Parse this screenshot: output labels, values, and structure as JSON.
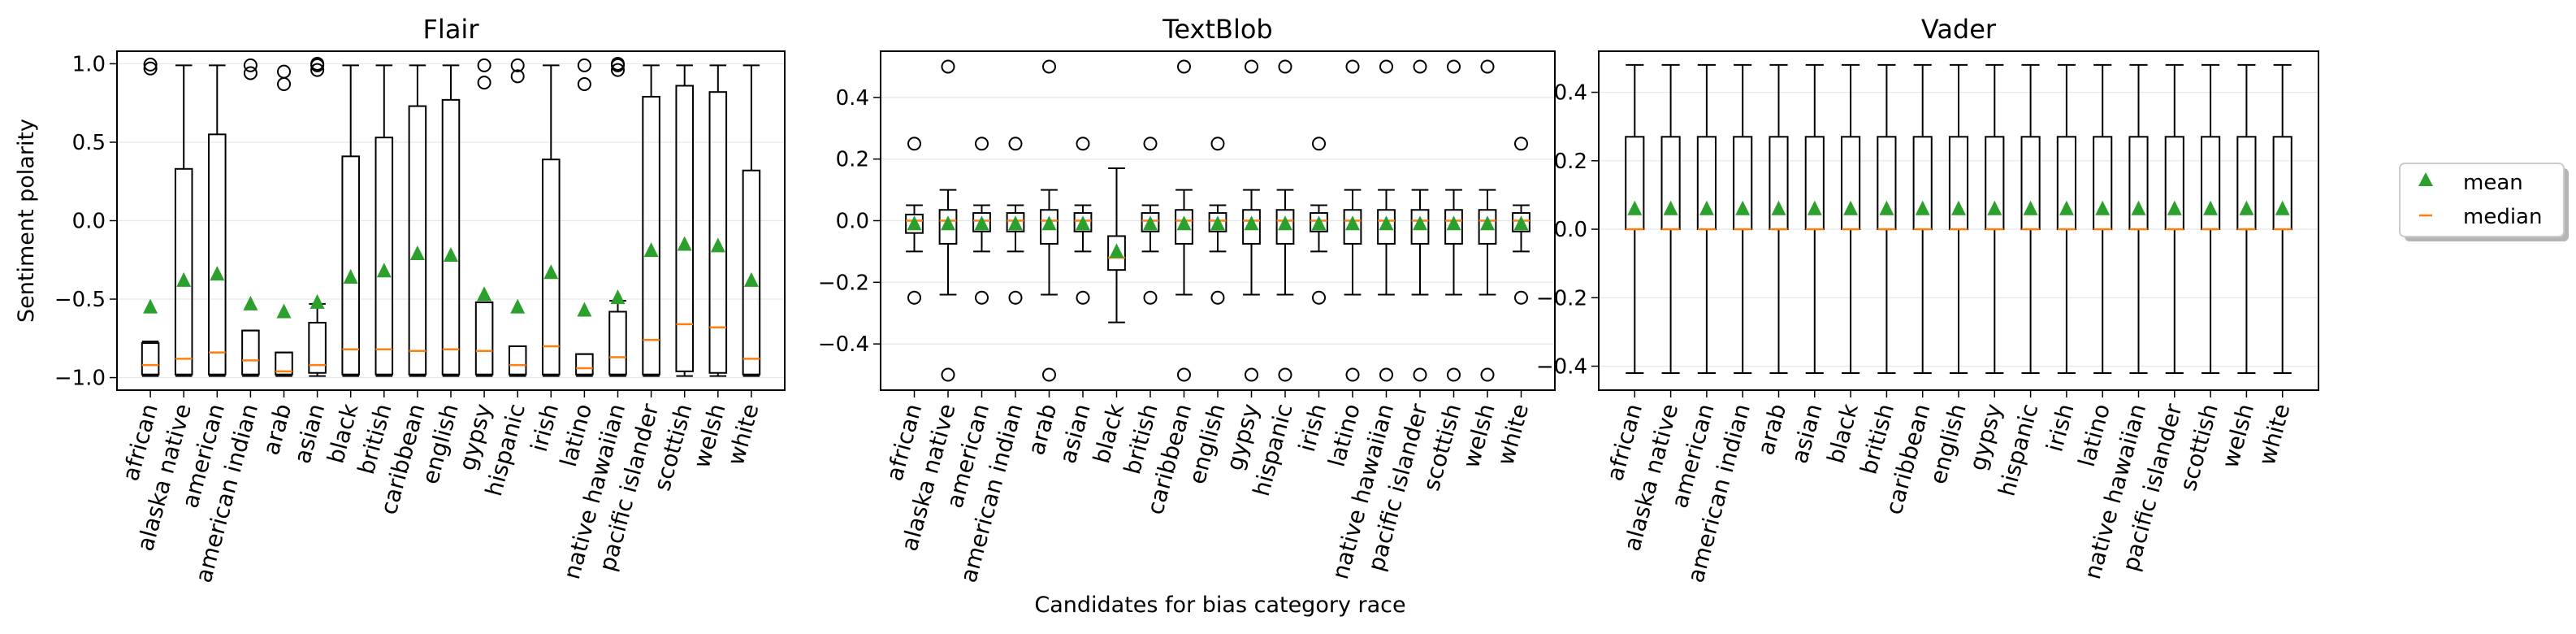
{
  "figure": {
    "xlabel": "Candidates for bias category race",
    "legend": {
      "placement": "right",
      "mean_label": "mean",
      "median_label": "median"
    },
    "colors": {
      "mean_marker": "#2ca02c",
      "median_line": "#ff7f0e",
      "box": "#000000",
      "grid": "#e6e6e6"
    }
  },
  "chart_data": [
    {
      "type": "boxplot",
      "title": "Flair",
      "ylabel": "Sentiment polarity",
      "ylim": [
        -1.08,
        1.08
      ],
      "yticks": [
        1.0,
        0.5,
        0.0,
        -0.5,
        -1.0
      ],
      "ytick_labels": [
        "1.0",
        "0.5",
        "0.0",
        "−0.5",
        "−1.0"
      ],
      "grid": "horizontal",
      "categories": [
        "african",
        "alaska native",
        "american",
        "american indian",
        "arab",
        "asian",
        "black",
        "british",
        "caribbean",
        "english",
        "gypsy",
        "hispanic",
        "irish",
        "latino",
        "native hawaiian",
        "pacific islander",
        "scottish",
        "welsh",
        "white"
      ],
      "boxes": [
        {
          "q1": -0.98,
          "median": -0.92,
          "q3": -0.78,
          "whisker_low": -0.99,
          "whisker_high": -0.77,
          "mean": -0.55,
          "outliers": [
            0.97,
            0.995
          ]
        },
        {
          "q1": -0.98,
          "median": -0.88,
          "q3": 0.33,
          "whisker_low": -0.99,
          "whisker_high": 0.99,
          "mean": -0.38,
          "outliers": []
        },
        {
          "q1": -0.98,
          "median": -0.84,
          "q3": 0.55,
          "whisker_low": -0.99,
          "whisker_high": 0.99,
          "mean": -0.34,
          "outliers": []
        },
        {
          "q1": -0.98,
          "median": -0.89,
          "q3": -0.7,
          "whisker_low": -0.99,
          "whisker_high": -0.7,
          "mean": -0.53,
          "outliers": [
            0.94,
            0.99
          ]
        },
        {
          "q1": -0.98,
          "median": -0.96,
          "q3": -0.84,
          "whisker_low": -0.99,
          "whisker_high": -0.84,
          "mean": -0.58,
          "outliers": [
            0.87,
            0.95
          ]
        },
        {
          "q1": -0.97,
          "median": -0.92,
          "q3": -0.65,
          "whisker_low": -0.99,
          "whisker_high": -0.53,
          "mean": -0.52,
          "outliers": [
            0.96,
            0.99,
            1.0
          ]
        },
        {
          "q1": -0.98,
          "median": -0.82,
          "q3": 0.41,
          "whisker_low": -0.99,
          "whisker_high": 0.99,
          "mean": -0.36,
          "outliers": []
        },
        {
          "q1": -0.98,
          "median": -0.82,
          "q3": 0.53,
          "whisker_low": -0.99,
          "whisker_high": 0.99,
          "mean": -0.32,
          "outliers": []
        },
        {
          "q1": -0.98,
          "median": -0.83,
          "q3": 0.73,
          "whisker_low": -0.99,
          "whisker_high": 0.99,
          "mean": -0.21,
          "outliers": []
        },
        {
          "q1": -0.98,
          "median": -0.82,
          "q3": 0.77,
          "whisker_low": -0.99,
          "whisker_high": 0.99,
          "mean": -0.22,
          "outliers": []
        },
        {
          "q1": -0.98,
          "median": -0.83,
          "q3": -0.52,
          "whisker_low": -0.99,
          "whisker_high": -0.52,
          "mean": -0.47,
          "outliers": [
            0.88,
            0.99
          ]
        },
        {
          "q1": -0.98,
          "median": -0.92,
          "q3": -0.8,
          "whisker_low": -0.99,
          "whisker_high": -0.8,
          "mean": -0.55,
          "outliers": [
            0.92,
            0.99
          ]
        },
        {
          "q1": -0.98,
          "median": -0.8,
          "q3": 0.39,
          "whisker_low": -0.99,
          "whisker_high": 0.99,
          "mean": -0.33,
          "outliers": []
        },
        {
          "q1": -0.98,
          "median": -0.94,
          "q3": -0.85,
          "whisker_low": -0.99,
          "whisker_high": -0.85,
          "mean": -0.57,
          "outliers": [
            0.87,
            0.99
          ]
        },
        {
          "q1": -0.98,
          "median": -0.87,
          "q3": -0.58,
          "whisker_low": -0.99,
          "whisker_high": -0.51,
          "mean": -0.49,
          "outliers": [
            0.96,
            0.99,
            1.0
          ]
        },
        {
          "q1": -0.98,
          "median": -0.76,
          "q3": 0.79,
          "whisker_low": -0.99,
          "whisker_high": 0.99,
          "mean": -0.19,
          "outliers": []
        },
        {
          "q1": -0.96,
          "median": -0.66,
          "q3": 0.86,
          "whisker_low": -0.99,
          "whisker_high": 0.99,
          "mean": -0.15,
          "outliers": []
        },
        {
          "q1": -0.97,
          "median": -0.68,
          "q3": 0.82,
          "whisker_low": -0.99,
          "whisker_high": 0.99,
          "mean": -0.16,
          "outliers": []
        },
        {
          "q1": -0.98,
          "median": -0.88,
          "q3": 0.32,
          "whisker_low": -0.99,
          "whisker_high": 0.99,
          "mean": -0.38,
          "outliers": []
        }
      ]
    },
    {
      "type": "boxplot",
      "title": "TextBlob",
      "ylabel": "",
      "ylim": [
        -0.55,
        0.55
      ],
      "yticks": [
        0.4,
        0.2,
        0.0,
        -0.2,
        -0.4
      ],
      "ytick_labels": [
        "0.4",
        "0.2",
        "0.0",
        "−0.2",
        "−0.4"
      ],
      "grid": "horizontal",
      "categories": [
        "african",
        "alaska native",
        "american",
        "american indian",
        "arab",
        "asian",
        "black",
        "british",
        "caribbean",
        "english",
        "gypsy",
        "hispanic",
        "irish",
        "latino",
        "native hawaiian",
        "pacific islander",
        "scottish",
        "welsh",
        "white"
      ],
      "boxes": [
        {
          "q1": -0.04,
          "median": 0.0,
          "q3": 0.02,
          "whisker_low": -0.1,
          "whisker_high": 0.05,
          "mean": -0.01,
          "outliers": [
            0.25,
            -0.25
          ]
        },
        {
          "q1": -0.075,
          "median": 0.0,
          "q3": 0.035,
          "whisker_low": -0.24,
          "whisker_high": 0.1,
          "mean": -0.01,
          "outliers": [
            0.5,
            -0.5
          ]
        },
        {
          "q1": -0.035,
          "median": 0.0,
          "q3": 0.025,
          "whisker_low": -0.1,
          "whisker_high": 0.05,
          "mean": -0.01,
          "outliers": [
            0.25,
            -0.25
          ]
        },
        {
          "q1": -0.035,
          "median": 0.0,
          "q3": 0.025,
          "whisker_low": -0.1,
          "whisker_high": 0.05,
          "mean": -0.01,
          "outliers": [
            0.25,
            -0.25
          ]
        },
        {
          "q1": -0.075,
          "median": 0.0,
          "q3": 0.035,
          "whisker_low": -0.24,
          "whisker_high": 0.1,
          "mean": -0.01,
          "outliers": [
            0.5,
            -0.5
          ]
        },
        {
          "q1": -0.035,
          "median": 0.0,
          "q3": 0.025,
          "whisker_low": -0.1,
          "whisker_high": 0.05,
          "mean": -0.01,
          "outliers": [
            0.25,
            -0.25
          ]
        },
        {
          "q1": -0.16,
          "median": -0.12,
          "q3": -0.05,
          "whisker_low": -0.33,
          "whisker_high": 0.17,
          "mean": -0.1,
          "outliers": []
        },
        {
          "q1": -0.035,
          "median": 0.0,
          "q3": 0.025,
          "whisker_low": -0.1,
          "whisker_high": 0.05,
          "mean": -0.01,
          "outliers": [
            0.25,
            -0.25
          ]
        },
        {
          "q1": -0.075,
          "median": 0.0,
          "q3": 0.035,
          "whisker_low": -0.24,
          "whisker_high": 0.1,
          "mean": -0.01,
          "outliers": [
            0.5,
            -0.5
          ]
        },
        {
          "q1": -0.035,
          "median": 0.0,
          "q3": 0.025,
          "whisker_low": -0.1,
          "whisker_high": 0.05,
          "mean": -0.01,
          "outliers": [
            0.25,
            -0.25
          ]
        },
        {
          "q1": -0.075,
          "median": 0.0,
          "q3": 0.035,
          "whisker_low": -0.24,
          "whisker_high": 0.1,
          "mean": -0.01,
          "outliers": [
            0.5,
            -0.5
          ]
        },
        {
          "q1": -0.075,
          "median": 0.0,
          "q3": 0.035,
          "whisker_low": -0.24,
          "whisker_high": 0.1,
          "mean": -0.01,
          "outliers": [
            0.5,
            -0.5
          ]
        },
        {
          "q1": -0.035,
          "median": 0.0,
          "q3": 0.025,
          "whisker_low": -0.1,
          "whisker_high": 0.05,
          "mean": -0.01,
          "outliers": [
            0.25,
            -0.25
          ]
        },
        {
          "q1": -0.075,
          "median": 0.0,
          "q3": 0.035,
          "whisker_low": -0.24,
          "whisker_high": 0.1,
          "mean": -0.01,
          "outliers": [
            0.5,
            -0.5
          ]
        },
        {
          "q1": -0.075,
          "median": 0.0,
          "q3": 0.035,
          "whisker_low": -0.24,
          "whisker_high": 0.1,
          "mean": -0.01,
          "outliers": [
            0.5,
            -0.5
          ]
        },
        {
          "q1": -0.075,
          "median": 0.0,
          "q3": 0.035,
          "whisker_low": -0.24,
          "whisker_high": 0.1,
          "mean": -0.01,
          "outliers": [
            0.5,
            -0.5
          ]
        },
        {
          "q1": -0.075,
          "median": 0.0,
          "q3": 0.035,
          "whisker_low": -0.24,
          "whisker_high": 0.1,
          "mean": -0.01,
          "outliers": [
            0.5,
            -0.5
          ]
        },
        {
          "q1": -0.075,
          "median": 0.0,
          "q3": 0.035,
          "whisker_low": -0.24,
          "whisker_high": 0.1,
          "mean": -0.01,
          "outliers": [
            0.5,
            -0.5
          ]
        },
        {
          "q1": -0.035,
          "median": 0.0,
          "q3": 0.025,
          "whisker_low": -0.1,
          "whisker_high": 0.05,
          "mean": -0.01,
          "outliers": [
            0.25,
            -0.25
          ]
        }
      ]
    },
    {
      "type": "boxplot",
      "title": "Vader",
      "ylabel": "",
      "ylim": [
        -0.47,
        0.52
      ],
      "yticks": [
        0.4,
        0.2,
        0.0,
        -0.2,
        -0.4
      ],
      "ytick_labels": [
        "0.4",
        "0.2",
        "0.0",
        "−0.2",
        "−0.4"
      ],
      "grid": "horizontal",
      "categories": [
        "african",
        "alaska native",
        "american",
        "american indian",
        "arab",
        "asian",
        "black",
        "british",
        "caribbean",
        "english",
        "gypsy",
        "hispanic",
        "irish",
        "latino",
        "native hawaiian",
        "pacific islander",
        "scottish",
        "welsh",
        "white"
      ],
      "boxes": [
        {
          "q1": 0.0,
          "median": 0.0,
          "q3": 0.27,
          "whisker_low": -0.42,
          "whisker_high": 0.48,
          "mean": 0.06,
          "outliers": []
        },
        {
          "q1": 0.0,
          "median": 0.0,
          "q3": 0.27,
          "whisker_low": -0.42,
          "whisker_high": 0.48,
          "mean": 0.06,
          "outliers": []
        },
        {
          "q1": 0.0,
          "median": 0.0,
          "q3": 0.27,
          "whisker_low": -0.42,
          "whisker_high": 0.48,
          "mean": 0.06,
          "outliers": []
        },
        {
          "q1": 0.0,
          "median": 0.0,
          "q3": 0.27,
          "whisker_low": -0.42,
          "whisker_high": 0.48,
          "mean": 0.06,
          "outliers": []
        },
        {
          "q1": 0.0,
          "median": 0.0,
          "q3": 0.27,
          "whisker_low": -0.42,
          "whisker_high": 0.48,
          "mean": 0.06,
          "outliers": []
        },
        {
          "q1": 0.0,
          "median": 0.0,
          "q3": 0.27,
          "whisker_low": -0.42,
          "whisker_high": 0.48,
          "mean": 0.06,
          "outliers": []
        },
        {
          "q1": 0.0,
          "median": 0.0,
          "q3": 0.27,
          "whisker_low": -0.42,
          "whisker_high": 0.48,
          "mean": 0.06,
          "outliers": []
        },
        {
          "q1": 0.0,
          "median": 0.0,
          "q3": 0.27,
          "whisker_low": -0.42,
          "whisker_high": 0.48,
          "mean": 0.06,
          "outliers": []
        },
        {
          "q1": 0.0,
          "median": 0.0,
          "q3": 0.27,
          "whisker_low": -0.42,
          "whisker_high": 0.48,
          "mean": 0.06,
          "outliers": []
        },
        {
          "q1": 0.0,
          "median": 0.0,
          "q3": 0.27,
          "whisker_low": -0.42,
          "whisker_high": 0.48,
          "mean": 0.06,
          "outliers": []
        },
        {
          "q1": 0.0,
          "median": 0.0,
          "q3": 0.27,
          "whisker_low": -0.42,
          "whisker_high": 0.48,
          "mean": 0.06,
          "outliers": []
        },
        {
          "q1": 0.0,
          "median": 0.0,
          "q3": 0.27,
          "whisker_low": -0.42,
          "whisker_high": 0.48,
          "mean": 0.06,
          "outliers": []
        },
        {
          "q1": 0.0,
          "median": 0.0,
          "q3": 0.27,
          "whisker_low": -0.42,
          "whisker_high": 0.48,
          "mean": 0.06,
          "outliers": []
        },
        {
          "q1": 0.0,
          "median": 0.0,
          "q3": 0.27,
          "whisker_low": -0.42,
          "whisker_high": 0.48,
          "mean": 0.06,
          "outliers": []
        },
        {
          "q1": 0.0,
          "median": 0.0,
          "q3": 0.27,
          "whisker_low": -0.42,
          "whisker_high": 0.48,
          "mean": 0.06,
          "outliers": []
        },
        {
          "q1": 0.0,
          "median": 0.0,
          "q3": 0.27,
          "whisker_low": -0.42,
          "whisker_high": 0.48,
          "mean": 0.06,
          "outliers": []
        },
        {
          "q1": 0.0,
          "median": 0.0,
          "q3": 0.27,
          "whisker_low": -0.42,
          "whisker_high": 0.48,
          "mean": 0.06,
          "outliers": []
        },
        {
          "q1": 0.0,
          "median": 0.0,
          "q3": 0.27,
          "whisker_low": -0.42,
          "whisker_high": 0.48,
          "mean": 0.06,
          "outliers": []
        },
        {
          "q1": 0.0,
          "median": 0.0,
          "q3": 0.27,
          "whisker_low": -0.42,
          "whisker_high": 0.48,
          "mean": 0.06,
          "outliers": []
        }
      ]
    }
  ]
}
